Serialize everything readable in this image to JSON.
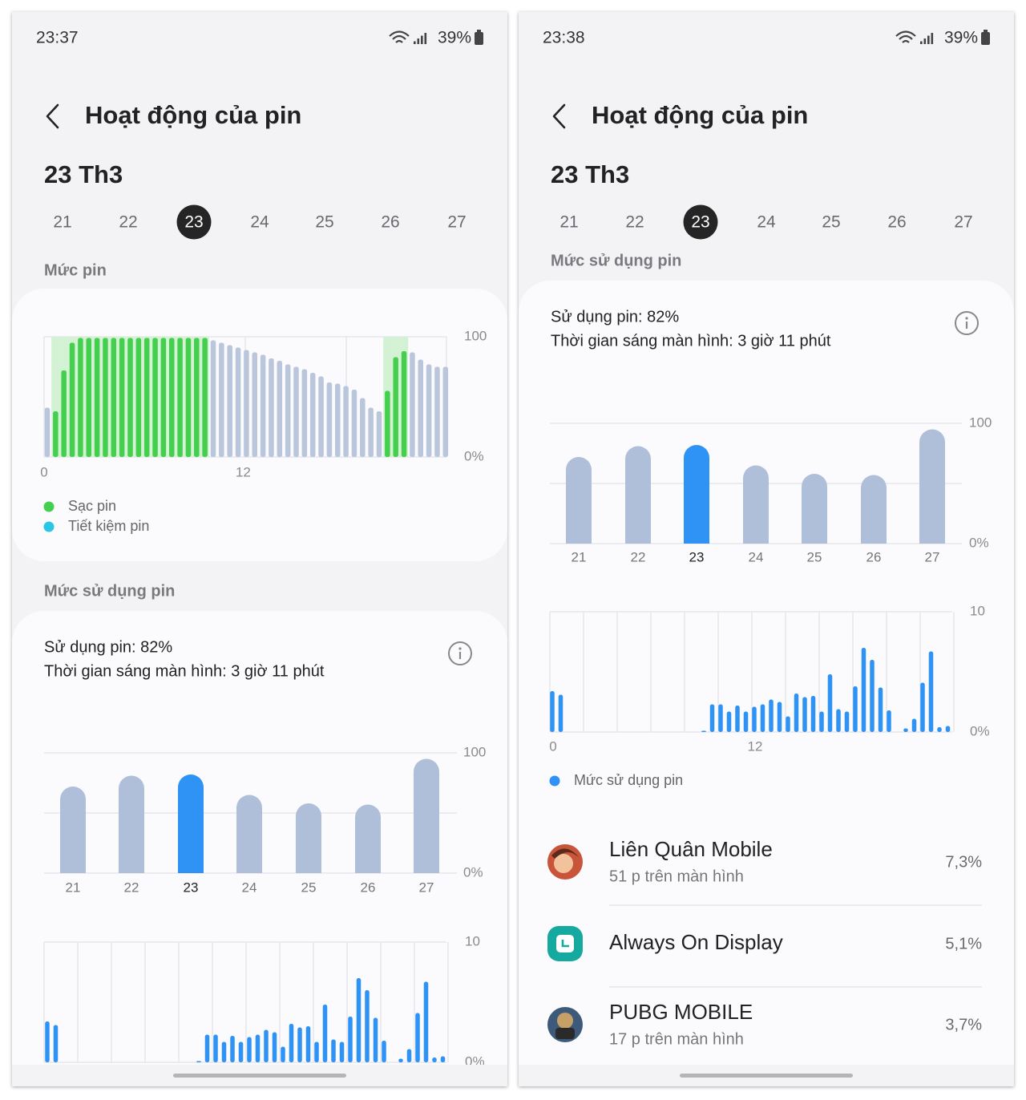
{
  "screens": [
    {
      "status": {
        "time": "23:37",
        "battery": "39%"
      },
      "title": "Hoạt động của pin",
      "date": "23 Th3",
      "days": [
        "21",
        "22",
        "23",
        "24",
        "25",
        "26",
        "27"
      ],
      "selected_day": 2,
      "level_heading": "Mức pin",
      "level_chart": {
        "type": "bar",
        "values": [
          41,
          38,
          72,
          95,
          99,
          99,
          99,
          99,
          99,
          99,
          99,
          99,
          99,
          99,
          99,
          99,
          99,
          99,
          99,
          99,
          97,
          95,
          93,
          91,
          89,
          87,
          85,
          82,
          80,
          77,
          75,
          73,
          70,
          67,
          62,
          61,
          59,
          56,
          49,
          41,
          38,
          55,
          83,
          88,
          87,
          81,
          77,
          75,
          75
        ],
        "charging": [
          false,
          true,
          true,
          true,
          true,
          true,
          true,
          true,
          true,
          true,
          true,
          true,
          true,
          true,
          true,
          true,
          true,
          true,
          true,
          true,
          false,
          false,
          false,
          false,
          false,
          false,
          false,
          false,
          false,
          false,
          false,
          false,
          false,
          false,
          false,
          false,
          false,
          false,
          false,
          false,
          false,
          true,
          true,
          true,
          false,
          false,
          false,
          false,
          false
        ],
        "color": "#b9c6dc",
        "charge_color": "#45cf4f",
        "ylim": [
          0,
          100
        ],
        "yticks": [
          100,
          {
            "value": 0,
            "label": "0%"
          }
        ],
        "xticks": [
          0,
          12
        ],
        "legend": [
          {
            "name": "Sạc pin",
            "color": "#45cf4f"
          },
          {
            "name": "Tiết kiệm pin",
            "color": "#2bc6e4"
          }
        ]
      },
      "usage_heading": "Mức sử dụng pin",
      "usage_summary": [
        "Sử dụng pin: 82%",
        "Thời gian sáng màn hình: 3 giờ 11 phút"
      ],
      "daily_chart": {
        "type": "bar",
        "categories": [
          "21",
          "22",
          "23",
          "24",
          "25",
          "26",
          "27"
        ],
        "values": [
          72,
          81,
          82,
          65,
          58,
          57,
          95
        ],
        "color": "#b0bfd9",
        "highlight": 2,
        "highlight_color": "#2e93f5",
        "ylim": [
          0,
          100
        ],
        "yticks": [
          100,
          {
            "value": 0,
            "label": "0%"
          }
        ]
      },
      "hourly_chart": {
        "type": "bar",
        "values": [
          3.4,
          3.1,
          0,
          0,
          0,
          0,
          0,
          0,
          0,
          0,
          0,
          0,
          0,
          0,
          0,
          0,
          0,
          0,
          0.1,
          2.3,
          2.3,
          1.7,
          2.2,
          1.7,
          2.1,
          2.3,
          2.7,
          2.5,
          1.3,
          3.2,
          2.9,
          3.0,
          1.7,
          4.8,
          1.9,
          1.7,
          3.8,
          7.0,
          6.0,
          3.7,
          1.8,
          0,
          0.3,
          1.1,
          4.1,
          6.7,
          0.4,
          0.5
        ],
        "color": "#2e93f5",
        "ylim": [
          0,
          10
        ],
        "yticks": [
          10,
          {
            "value": 0,
            "label": "0%"
          }
        ]
      }
    },
    {
      "status": {
        "time": "23:38",
        "battery": "39%"
      },
      "title": "Hoạt động của pin",
      "date": "23 Th3",
      "days": [
        "21",
        "22",
        "23",
        "24",
        "25",
        "26",
        "27"
      ],
      "selected_day": 2,
      "usage_heading": "Mức sử dụng pin",
      "usage_summary": [
        "Sử dụng pin: 82%",
        "Thời gian sáng màn hình: 3 giờ 11 phút"
      ],
      "daily_chart": {
        "type": "bar",
        "categories": [
          "21",
          "22",
          "23",
          "24",
          "25",
          "26",
          "27"
        ],
        "values": [
          72,
          81,
          82,
          65,
          58,
          57,
          95
        ],
        "color": "#b0bfd9",
        "highlight": 2,
        "highlight_color": "#2e93f5",
        "ylim": [
          0,
          100
        ],
        "yticks": [
          100,
          {
            "value": 0,
            "label": "0%"
          }
        ]
      },
      "hourly_chart": {
        "type": "bar",
        "values": [
          3.4,
          3.1,
          0,
          0,
          0,
          0,
          0,
          0,
          0,
          0,
          0,
          0,
          0,
          0,
          0,
          0,
          0,
          0,
          0.1,
          2.3,
          2.3,
          1.7,
          2.2,
          1.7,
          2.1,
          2.3,
          2.7,
          2.5,
          1.3,
          3.2,
          2.9,
          3.0,
          1.7,
          4.8,
          1.9,
          1.7,
          3.8,
          7.0,
          6.0,
          3.7,
          1.8,
          0,
          0.3,
          1.1,
          4.1,
          6.7,
          0.4,
          0.5
        ],
        "color": "#2e93f5",
        "ylim": [
          0,
          10
        ],
        "yticks": [
          10,
          {
            "value": 0,
            "label": "0%"
          }
        ],
        "xticks": [
          0,
          12
        ],
        "legend": [
          {
            "name": "Mức sử dụng pin",
            "color": "#2e93f5"
          }
        ]
      },
      "apps": [
        {
          "name": "Liên Quân Mobile",
          "detail": "51 p trên màn hình",
          "share": "7,3%"
        },
        {
          "name": "Always On Display",
          "share": "5,1%"
        },
        {
          "name": "PUBG MOBILE",
          "detail": "17 p trên màn hình",
          "share": "3,7%"
        }
      ]
    }
  ]
}
